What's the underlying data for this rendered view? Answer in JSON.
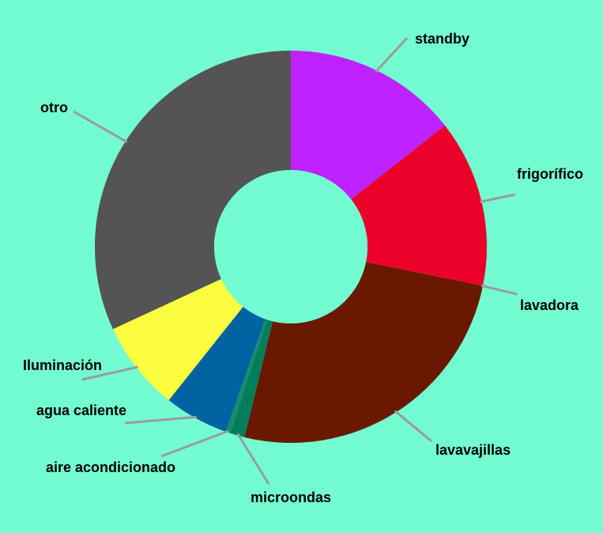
{
  "chart_data": {
    "type": "pie",
    "donut": true,
    "title": "",
    "legend": "none",
    "slices": [
      {
        "label": "standby",
        "value": 14.4,
        "color": "#bd22ff"
      },
      {
        "label": "frigorífico",
        "value": 13.8,
        "color": "#eb0029"
      },
      {
        "label": "lavadora",
        "value": 0.0,
        "color": "#eb0029"
      },
      {
        "label": "lavavajillas",
        "value": 25.6,
        "color": "#6a1800"
      },
      {
        "label": "microondas",
        "value": 1.2,
        "color": "#007e5c"
      },
      {
        "label": "aire acondicionado",
        "value": 0.4,
        "color": "#1a8a6a"
      },
      {
        "label": "agua caliente",
        "value": 5.3,
        "color": "#0063a1"
      },
      {
        "label": "Iluminación",
        "value": 7.4,
        "color": "#fdfd3f"
      },
      {
        "label": "otro",
        "value": 31.9,
        "color": "#545454"
      }
    ]
  },
  "colors": {
    "background": "#73fcd2",
    "leader_line": "#9b9b9b",
    "label_text": "#000000"
  }
}
